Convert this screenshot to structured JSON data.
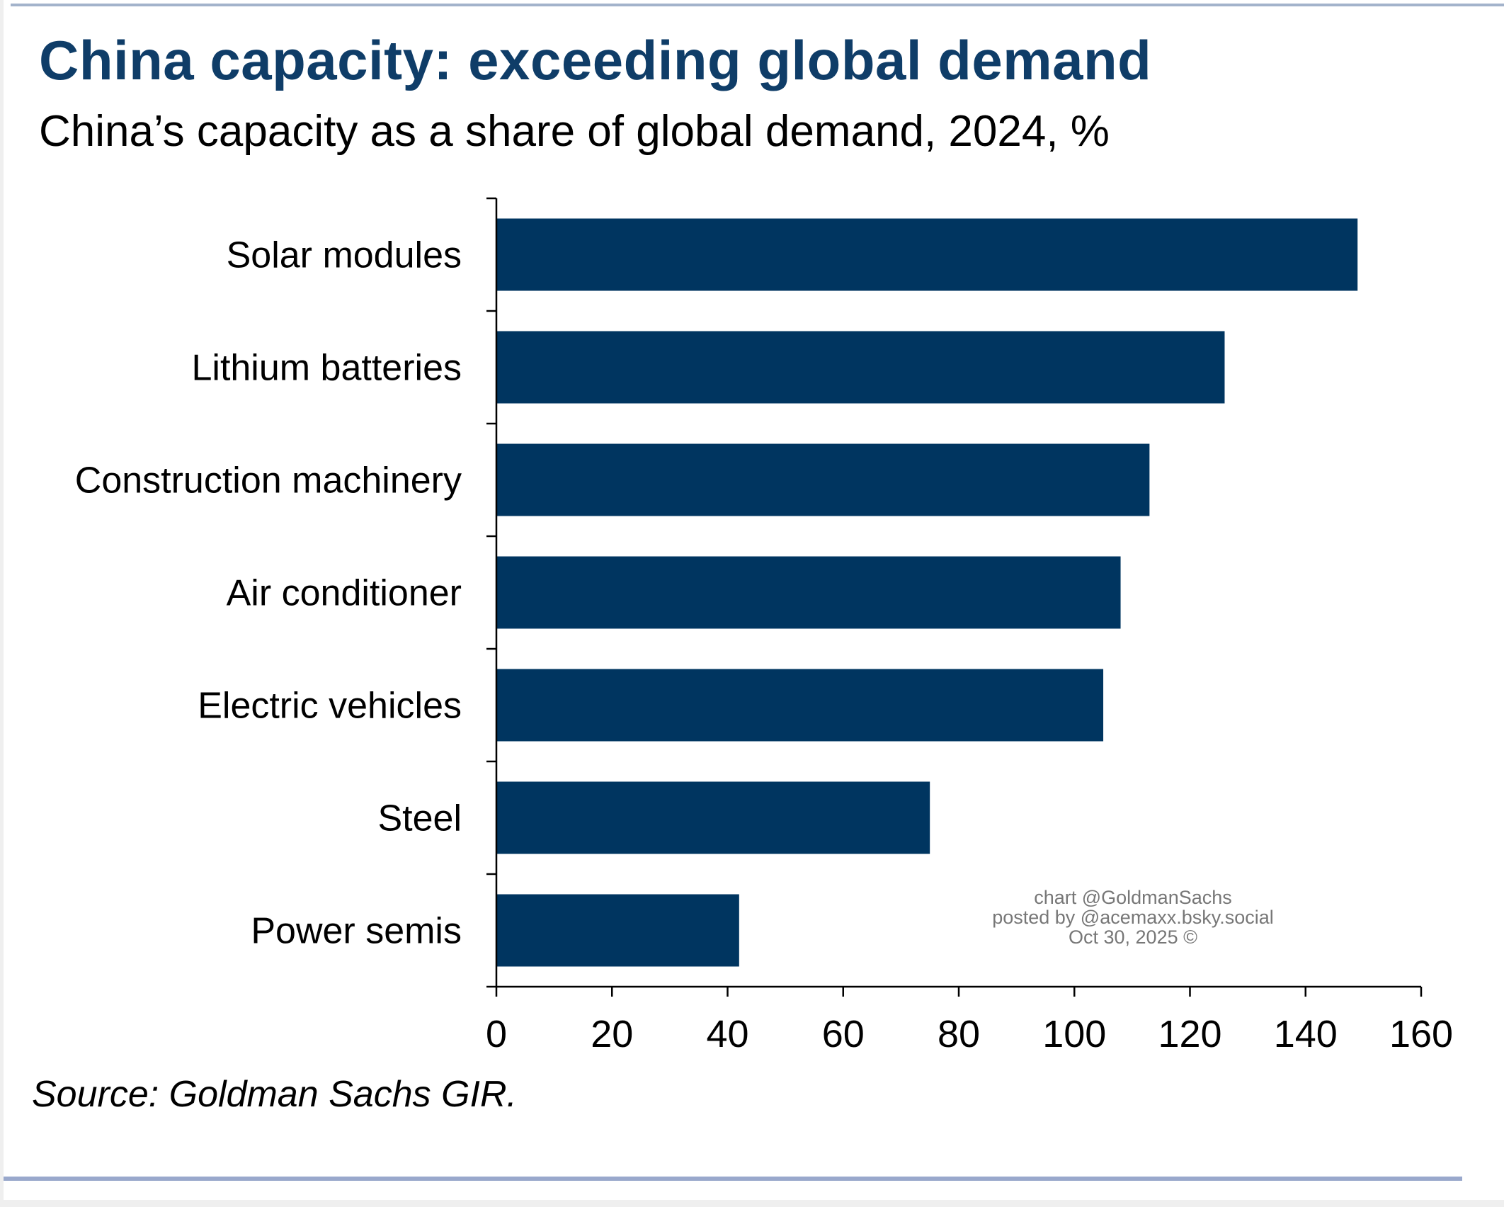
{
  "chart_data": {
    "type": "bar",
    "orientation": "horizontal",
    "title": "China capacity: exceeding global demand",
    "subtitle": "China’s capacity as a share of global demand, 2024, %",
    "categories": [
      "Solar modules",
      "Lithium batteries",
      "Construction machinery",
      "Air conditioner",
      "Electric vehicles",
      "Steel",
      "Power semis"
    ],
    "values": [
      149,
      126,
      113,
      108,
      105,
      75,
      42
    ],
    "xlim": [
      0,
      160
    ],
    "xticks": [
      "0",
      "20",
      "40",
      "60",
      "80",
      "100",
      "120",
      "140",
      "160"
    ],
    "xlabel": "",
    "ylabel": "",
    "grid": false,
    "bar_color": "#003560",
    "source": "Source: Goldman Sachs GIR.",
    "watermark": [
      "chart @GoldmanSachs",
      "posted by @acemaxx.bsky.social",
      "Oct 30, 2025 ©"
    ]
  }
}
